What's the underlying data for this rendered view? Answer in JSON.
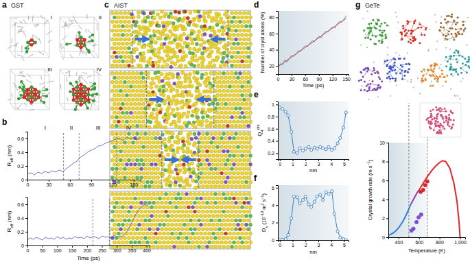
{
  "panel_labels": [
    "a",
    "b",
    "c",
    "d",
    "e",
    "f",
    "g"
  ],
  "diagrams": {
    "gst": {
      "title": "GST",
      "stages": [
        "I",
        "II",
        "III",
        "IV"
      ]
    },
    "aist": {
      "title": "AIST"
    },
    "gete": {
      "title": "GeTe"
    }
  },
  "chart_data": [
    {
      "type": "line",
      "xlim": [
        0,
        160
      ],
      "ylim": [
        0,
        0.7
      ],
      "xticks": [
        0,
        30,
        60,
        90,
        120,
        150
      ],
      "yticks": [
        0,
        0.2,
        0.4,
        0.6
      ],
      "ylabel": [
        "R",
        {
          "sub": "eff"
        },
        " (nm)"
      ],
      "vlines": [
        51,
        73,
        126
      ],
      "annotations": [
        {
          "text": "I",
          "x": 25
        },
        {
          "text": "II",
          "x": 62
        },
        {
          "text": "III",
          "x": 100
        },
        {
          "text": "IV",
          "x": 143
        }
      ],
      "series": [
        {
          "color": "#4b4fb5",
          "x": [
            0,
            5,
            10,
            15,
            20,
            25,
            30,
            35,
            40,
            45,
            50,
            55,
            60,
            65,
            70,
            75,
            80,
            85,
            90,
            95,
            100,
            105,
            110,
            115,
            120,
            125,
            130,
            135,
            140,
            145,
            150,
            155,
            160
          ],
          "values": [
            0.08,
            0.1,
            0.07,
            0.11,
            0.09,
            0.12,
            0.1,
            0.13,
            0.11,
            0.14,
            0.12,
            0.16,
            0.2,
            0.24,
            0.27,
            0.33,
            0.36,
            0.4,
            0.43,
            0.45,
            0.49,
            0.5,
            0.53,
            0.55,
            0.57,
            0.59,
            0.6,
            0.57,
            0.62,
            0.6,
            0.61,
            0.58,
            0.62
          ]
        }
      ]
    },
    {
      "type": "line",
      "xlim": [
        0,
        410
      ],
      "ylim": [
        0,
        0.7
      ],
      "xticks": [
        0,
        50,
        100,
        150,
        200,
        250,
        300,
        350,
        400
      ],
      "yticks": [
        0,
        0.2,
        0.4,
        0.6
      ],
      "ylabel": [
        "R",
        {
          "sub": "eff"
        },
        " (nm)"
      ],
      "xlabel": "Time (ps)",
      "vlines": [
        220,
        275
      ],
      "series": [
        {
          "color": "#4b4fb5",
          "x": [
            0,
            10,
            20,
            30,
            40,
            50,
            60,
            70,
            80,
            90,
            100,
            110,
            120,
            130,
            140,
            150,
            160,
            170,
            180,
            190,
            200,
            210,
            220,
            230,
            240,
            250,
            260,
            270,
            280,
            290,
            300,
            310,
            320,
            330,
            340,
            350,
            360,
            370,
            380,
            390,
            400,
            410
          ],
          "values": [
            0.08,
            0.11,
            0.09,
            0.12,
            0.1,
            0.08,
            0.12,
            0.1,
            0.11,
            0.09,
            0.13,
            0.1,
            0.12,
            0.09,
            0.11,
            0.1,
            0.13,
            0.11,
            0.12,
            0.1,
            0.14,
            0.11,
            0.13,
            0.12,
            0.1,
            0.14,
            0.12,
            0.13,
            0.11,
            0.15,
            0.12,
            0.14,
            0.13,
            0.18,
            0.25,
            0.33,
            0.42,
            0.5,
            0.55,
            0.6,
            0.58,
            0.62
          ]
        }
      ]
    },
    {
      "type": "line",
      "xlim": [
        0,
        155
      ],
      "ylim": [
        10,
        88
      ],
      "xticks": [
        0,
        30,
        60,
        90,
        120,
        150
      ],
      "yticks": [
        20,
        40,
        60,
        80
      ],
      "xlabel": "Time (ps)",
      "ylabel": "Number of cryst atoms (%)",
      "series": [
        {
          "color": "#4a9ad6",
          "x": [
            0,
            5,
            10,
            15,
            20,
            25,
            30,
            35,
            40,
            45,
            50,
            55,
            60,
            65,
            70,
            75,
            80,
            85,
            90,
            95,
            100,
            105,
            110,
            115,
            120,
            125,
            130,
            135,
            140,
            145,
            150
          ],
          "values": [
            20,
            23,
            21,
            27,
            25,
            29,
            33,
            32,
            35,
            39,
            38,
            42,
            45,
            44,
            48,
            51,
            50,
            54,
            57,
            55,
            60,
            63,
            62,
            66,
            68,
            67,
            72,
            75,
            74,
            78,
            82
          ]
        },
        {
          "color": "#e8342c",
          "x": [
            0,
            150
          ],
          "values": [
            19,
            79
          ]
        }
      ]
    },
    {
      "type": "line",
      "xlim": [
        -0.15,
        5.35
      ],
      "ylim": [
        0.1,
        1.05
      ],
      "xticks": [
        0,
        1,
        2,
        3,
        4,
        5
      ],
      "yticks": [
        0.2,
        0.4,
        0.6,
        0.8,
        1
      ],
      "xlabel": "nm",
      "ylabel": [
        "Q",
        {
          "sub": "4"
        },
        {
          "sup": "dot"
        }
      ],
      "series": [
        {
          "color": "#3b7fc4",
          "marker": "circle",
          "x": [
            0,
            0.2,
            0.45,
            0.65,
            0.9,
            1.1,
            1.35,
            1.55,
            1.8,
            2.0,
            2.25,
            2.45,
            2.7,
            2.9,
            3.15,
            3.35,
            3.6,
            3.8,
            4.05,
            4.25,
            4.5,
            4.7,
            4.95,
            5.15
          ],
          "values": [
            0.95,
            0.93,
            0.88,
            0.82,
            0.55,
            0.22,
            0.2,
            0.28,
            0.24,
            0.27,
            0.3,
            0.25,
            0.29,
            0.27,
            0.3,
            0.28,
            0.26,
            0.3,
            0.25,
            0.28,
            0.36,
            0.45,
            0.62,
            0.87
          ]
        }
      ]
    },
    {
      "type": "line",
      "xlim": [
        -0.15,
        5.35
      ],
      "ylim": [
        0,
        6.3
      ],
      "xticks": [
        0,
        1,
        2,
        3,
        4,
        5
      ],
      "yticks": [
        0,
        2,
        4,
        6
      ],
      "xlabel": "nm",
      "ylabel": [
        "D",
        {
          "sub": "x"
        },
        " (10",
        {
          "sup": "−10"
        },
        " m",
        {
          "sup": "2"
        },
        " s",
        {
          "sup": "−1"
        },
        ")"
      ],
      "series": [
        {
          "color": "#3b7fc4",
          "marker": "circle",
          "x": [
            0,
            0.2,
            0.45,
            0.65,
            0.9,
            1.1,
            1.35,
            1.55,
            1.8,
            2.0,
            2.25,
            2.45,
            2.7,
            2.9,
            3.15,
            3.35,
            3.6,
            3.8,
            4.05,
            4.25,
            4.5,
            4.7,
            4.95,
            5.15
          ],
          "values": [
            0,
            0.05,
            0.1,
            0.6,
            2.5,
            5.0,
            4.9,
            4.2,
            4.6,
            5.0,
            4.1,
            3.8,
            4.4,
            5.0,
            5.2,
            4.6,
            5.5,
            5.3,
            5.6,
            3.0,
            1.0,
            0.3,
            0.1,
            0
          ]
        }
      ]
    },
    {
      "type": "line",
      "xlim": [
        300,
        1050
      ],
      "ylim": [
        0,
        10
      ],
      "xticks": [
        400,
        600,
        800,
        {
          "value": 1000,
          "label": "1,000"
        }
      ],
      "yticks": [
        0,
        2,
        4,
        6,
        8,
        10
      ],
      "xlabel": "Temperature (K)",
      "ylabel": [
        "Crystal growth rate (m s",
        {
          "sup": "−1"
        },
        ")"
      ],
      "vlines": [
        500,
        680
      ],
      "series": [
        {
          "type": "line",
          "color": "#2f7fd1",
          "x": [
            300,
            320,
            340,
            360,
            380,
            400,
            420,
            440,
            460,
            480,
            500,
            520
          ],
          "values": [
            0.2,
            0.3,
            0.4,
            0.55,
            0.75,
            1.0,
            1.3,
            1.65,
            2.05,
            2.5,
            3.0,
            3.5
          ]
        },
        {
          "type": "line",
          "color": "#8b3fb0",
          "x": [
            520,
            540,
            560,
            580,
            600
          ],
          "values": [
            3.5,
            3.9,
            4.3,
            4.7,
            5.0
          ]
        },
        {
          "type": "line",
          "color": "#e0262c",
          "x": [
            600,
            640,
            680,
            720,
            760,
            800,
            830,
            860,
            900,
            940,
            970,
            990,
            1000
          ],
          "values": [
            5.0,
            5.7,
            6.4,
            7.0,
            7.5,
            7.9,
            8.1,
            8.0,
            7.3,
            5.7,
            3.8,
            1.6,
            0
          ]
        },
        {
          "type": "scatter",
          "marker": "circle",
          "color": "#7a4fd0",
          "x": [
            525,
            545,
            575,
            595,
            620
          ],
          "values": [
            0.7,
            0.9,
            1.6,
            2.1,
            2.4
          ]
        },
        {
          "type": "scatter",
          "marker": "circle",
          "color": "#d9262b",
          "x": [
            615,
            640,
            660,
            680
          ],
          "values": [
            4.8,
            5.0,
            5.5,
            5.9
          ]
        }
      ]
    }
  ]
}
